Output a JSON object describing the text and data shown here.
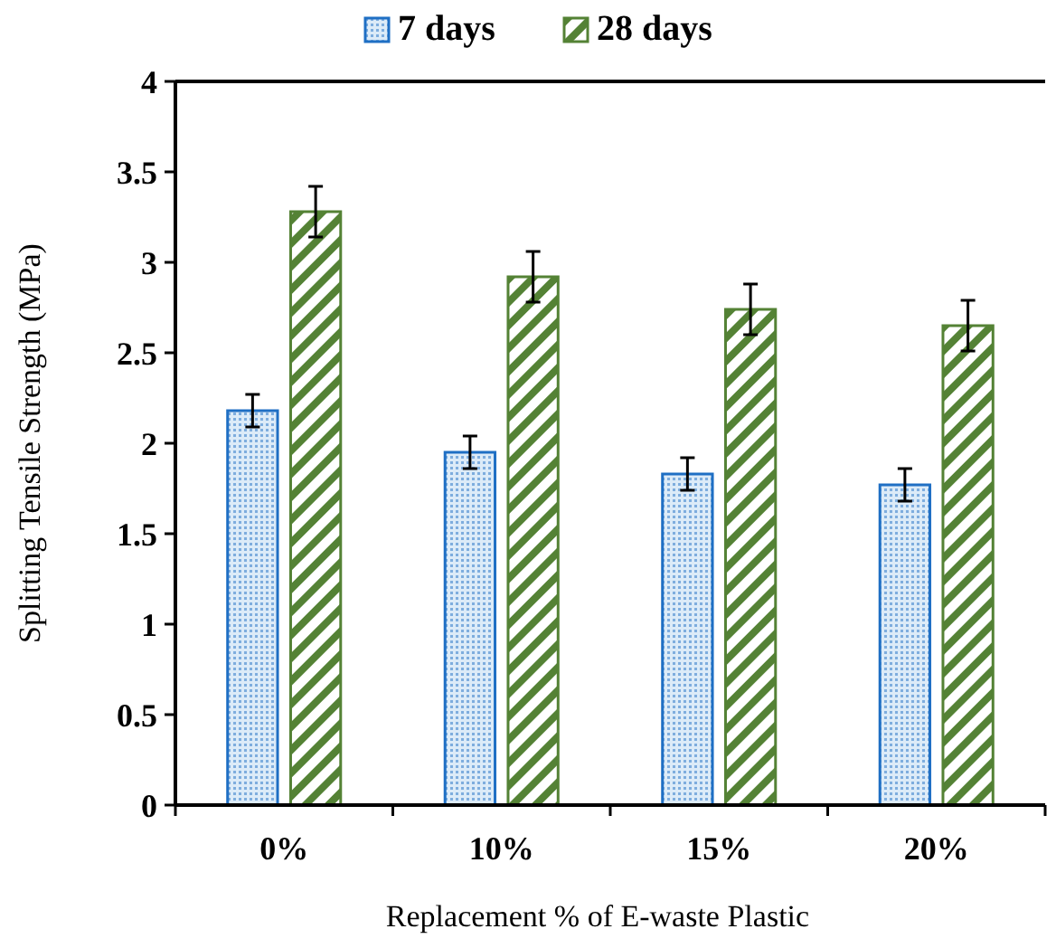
{
  "chart_data": {
    "type": "bar",
    "xlabel": "Replacement % of E-waste Plastic",
    "ylabel": "Splitting Tensile Strength (MPa)",
    "categories": [
      "0%",
      "10%",
      "15%",
      "20%"
    ],
    "series": [
      {
        "name": "7 days",
        "color": "#1f6fc4",
        "values": [
          2.18,
          1.95,
          1.83,
          1.77
        ],
        "errors": [
          0.09,
          0.09,
          0.09,
          0.09
        ]
      },
      {
        "name": "28 days",
        "color": "#548235",
        "values": [
          3.28,
          2.92,
          2.74,
          2.65
        ],
        "errors": [
          0.14,
          0.14,
          0.14,
          0.14
        ]
      }
    ],
    "ylim": [
      0,
      4
    ],
    "yticks": [
      0,
      0.5,
      1,
      1.5,
      2,
      2.5,
      3,
      3.5,
      4
    ],
    "grid": false,
    "legend": "top"
  }
}
